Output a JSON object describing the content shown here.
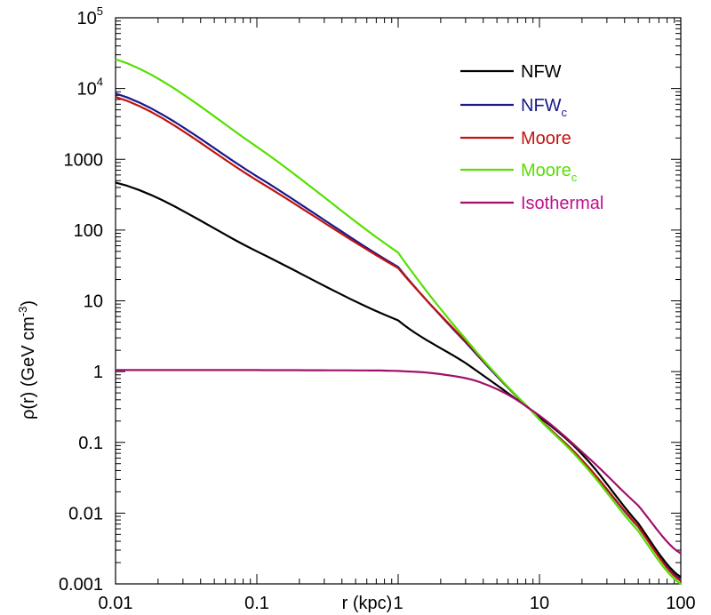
{
  "chart_data": {
    "type": "line",
    "xscale": "log",
    "yscale": "log",
    "xlim": [
      0.01,
      100
    ],
    "ylim": [
      0.001,
      100000
    ],
    "xlabel": "r (kpc)",
    "ylabel": {
      "main": "ρ(r) (GeV cm",
      "sup": "-3",
      "close": ")"
    },
    "xticks": [
      {
        "value": 0.01,
        "label": "0.01"
      },
      {
        "value": 0.1,
        "label": "0.1"
      },
      {
        "value": 1,
        "label": "1"
      },
      {
        "value": 10,
        "label": "10"
      },
      {
        "value": 100,
        "label": "100"
      }
    ],
    "yticks": [
      {
        "value": 0.001,
        "label": "0.001"
      },
      {
        "value": 0.01,
        "label": "0.01"
      },
      {
        "value": 0.1,
        "label": "0.1"
      },
      {
        "value": 1,
        "label": "1"
      },
      {
        "value": 10,
        "label": "10"
      },
      {
        "value": 100,
        "label": "100"
      },
      {
        "value": 1000,
        "label": "1000"
      },
      {
        "value": 10000,
        "label": "10",
        "sup": "4"
      },
      {
        "value": 100000,
        "label": "10",
        "sup": "5"
      }
    ],
    "legend_position": "top-right",
    "series": [
      {
        "name": "NFW",
        "sub": "",
        "color": "#000000",
        "label_color": "#000000",
        "x": [
          0.01,
          0.1,
          1,
          3,
          8.5,
          20,
          50,
          100
        ],
        "y": [
          470,
          50,
          5.3,
          1.32,
          0.3,
          0.068,
          0.0072,
          0.00125
        ]
      },
      {
        "name": "NFW",
        "sub": "c",
        "color": "#1a1a8c",
        "label_color": "#1a1a8c",
        "x": [
          0.01,
          0.1,
          1,
          3,
          8.5,
          20,
          50,
          100
        ],
        "y": [
          8500,
          575,
          30,
          2.6,
          0.3,
          0.056,
          0.0064,
          0.00115
        ]
      },
      {
        "name": "Moore",
        "sub": "",
        "color": "#c0140f",
        "label_color": "#c0140f",
        "x": [
          0.01,
          0.1,
          1,
          3,
          8.5,
          20,
          50,
          100
        ],
        "y": [
          7600,
          505,
          29,
          2.7,
          0.3,
          0.056,
          0.0065,
          0.0011
        ]
      },
      {
        "name": "Moore",
        "sub": "c",
        "color": "#55e000",
        "label_color": "#55e000",
        "x": [
          0.01,
          0.1,
          1,
          3,
          8.5,
          20,
          50,
          100
        ],
        "y": [
          26000,
          1500,
          48,
          2.9,
          0.3,
          0.052,
          0.0056,
          0.001
        ]
      },
      {
        "name": "Isothermal",
        "sub": "",
        "color": "#a0106a",
        "label_color": "#c0108a",
        "x": [
          0.01,
          0.1,
          0.5,
          1,
          2,
          4,
          8.5,
          20,
          50,
          100
        ],
        "y": [
          1.05,
          1.05,
          1.04,
          1.02,
          0.92,
          0.68,
          0.3,
          0.073,
          0.0128,
          0.0027
        ]
      }
    ]
  }
}
